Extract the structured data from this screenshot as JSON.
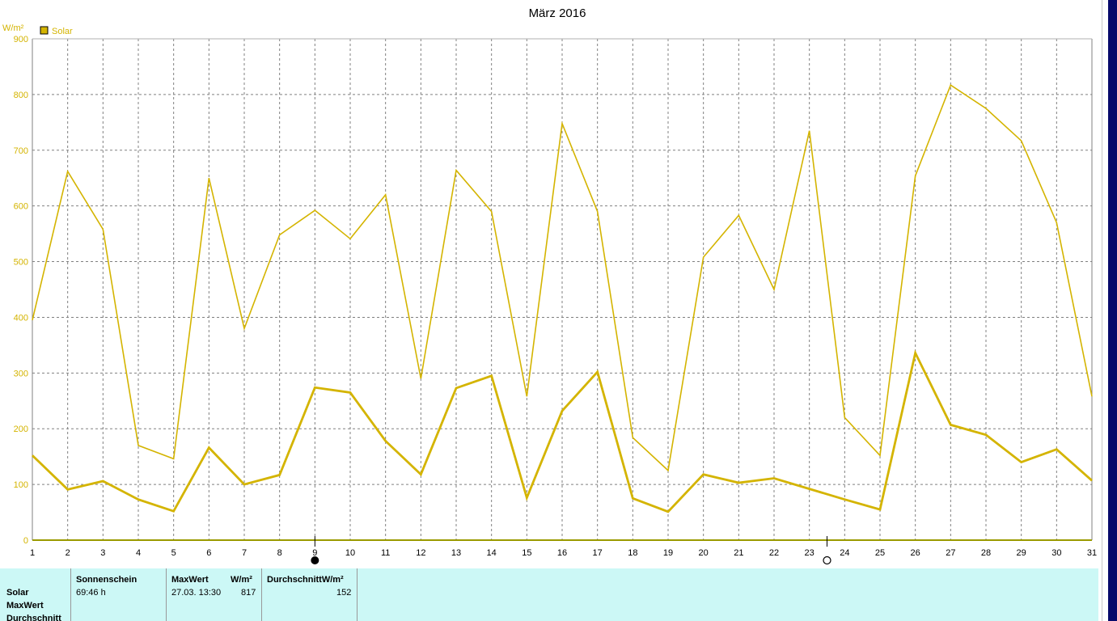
{
  "chart_data": {
    "type": "line",
    "title": "März 2016",
    "ylabel": "W/m²",
    "ylim": [
      0,
      900
    ],
    "yticks": [
      0,
      100,
      200,
      300,
      400,
      500,
      600,
      700,
      800,
      900
    ],
    "x": [
      1,
      2,
      3,
      4,
      5,
      6,
      7,
      8,
      9,
      10,
      11,
      12,
      13,
      14,
      15,
      16,
      17,
      18,
      19,
      20,
      21,
      22,
      23,
      24,
      25,
      26,
      27,
      28,
      29,
      30,
      31
    ],
    "grid": true,
    "legend": [
      {
        "label": "Solar",
        "color": "#d4b400"
      }
    ],
    "series": [
      {
        "values": [
          395,
          662,
          558,
          170,
          146,
          650,
          380,
          548,
          592,
          541,
          620,
          290,
          664,
          590,
          258,
          748,
          590,
          184,
          125,
          508,
          583,
          450,
          735,
          220,
          152,
          654,
          817,
          775,
          717,
          570,
          258
        ],
        "color": "#d4b400",
        "width": 1.6
      },
      {
        "values": [
          152,
          91,
          106,
          73,
          52,
          166,
          100,
          117,
          274,
          265,
          178,
          118,
          273,
          295,
          76,
          232,
          302,
          75,
          51,
          118,
          103,
          111,
          92,
          73,
          55,
          336,
          207,
          189,
          140,
          163,
          107
        ],
        "color": "#d4b400",
        "width": 2.8
      }
    ],
    "markers": [
      {
        "x": 9,
        "symbol": "new-moon"
      },
      {
        "x": 23.5,
        "symbol": "full-moon"
      }
    ]
  },
  "colors": {
    "line": "#d4b400",
    "grid": "#808080",
    "panel": "#ccf8f6",
    "sidebar": "#07096b"
  },
  "table": {
    "row_labels": [
      "Solar",
      "MaxWert",
      "Durchschnitt"
    ],
    "headers": {
      "sunshine": "Sonnenschein",
      "max": "MaxWert",
      "max_unit": "W/m²",
      "avg": "DurchschnittW/m²"
    },
    "solar": {
      "sunshine": "69:46 h",
      "max_date": "27.03.  13:30",
      "max_value": "817",
      "avg_value": "152"
    }
  }
}
